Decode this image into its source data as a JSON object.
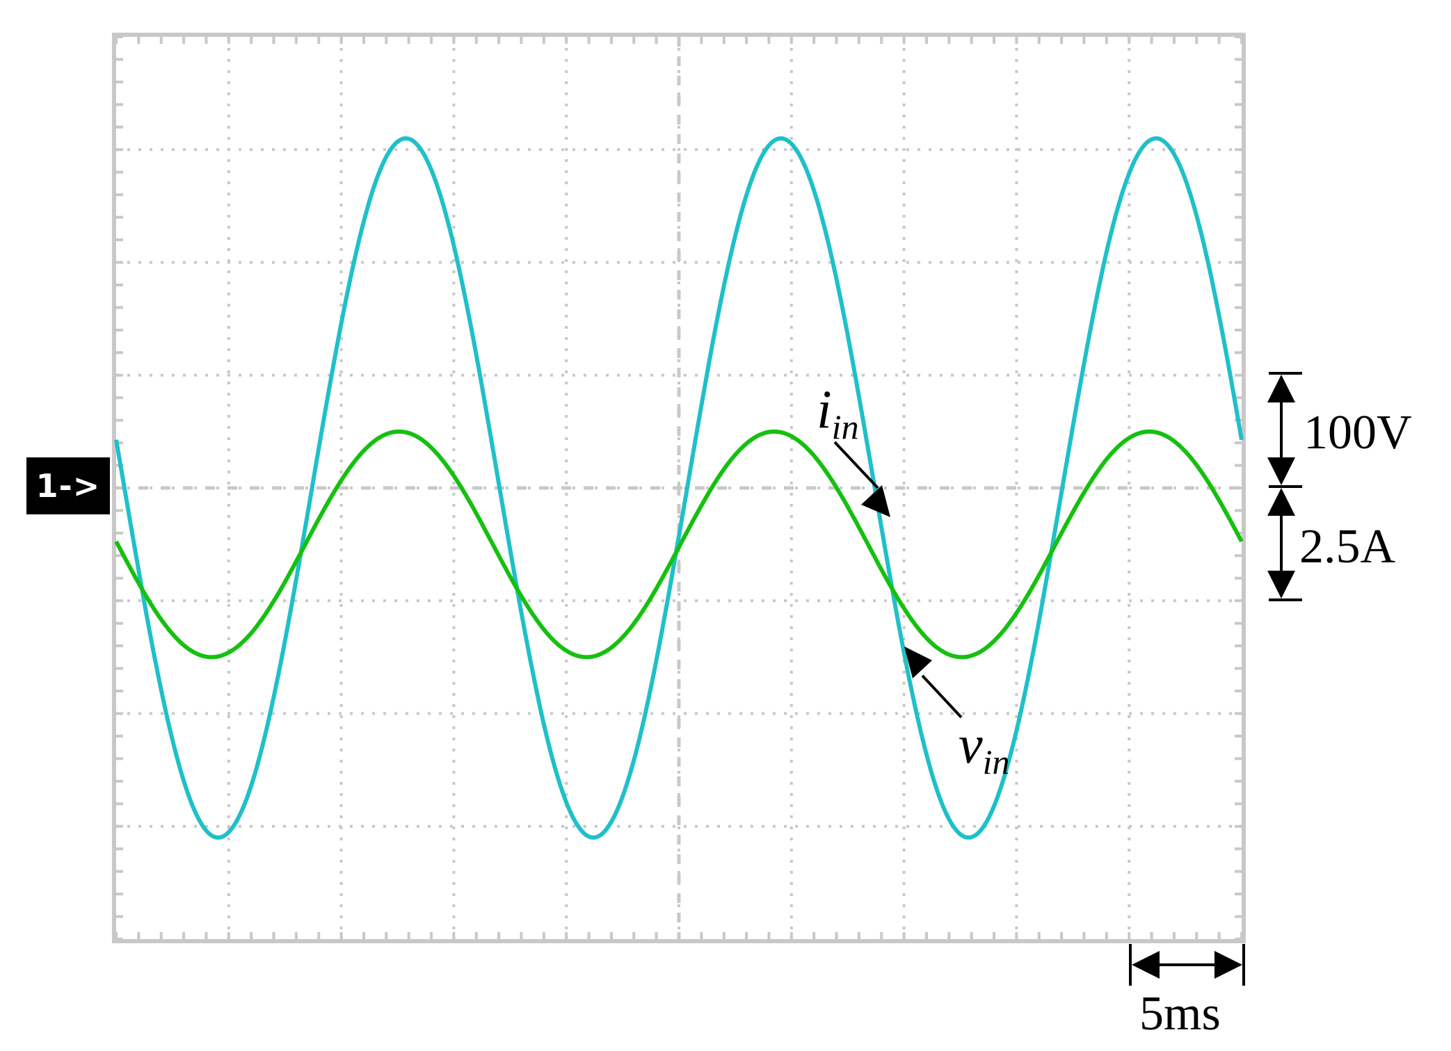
{
  "chart_data": {
    "type": "line",
    "channel_marker": "1->",
    "grid": {
      "divisions_x": 10,
      "divisions_y": 8,
      "style": "dotted"
    },
    "time_per_div": "5ms",
    "scales": [
      {
        "label": "100V",
        "divisions": 1
      },
      {
        "label": "2.5A",
        "divisions": 1
      }
    ],
    "xlim_ms": [
      0,
      50
    ],
    "series": [
      {
        "name": "v_in",
        "label_main": "v",
        "label_sub": "in",
        "color": "#1fc0c8",
        "unit": "V",
        "offset_div": 0,
        "frequency_hz": 60,
        "amplitude": 310,
        "phase_deg": -90,
        "peaks_ms": [
          8.7,
          25.4,
          42.1
        ]
      },
      {
        "name": "i_in",
        "label_main": "i",
        "label_sub": "in",
        "color": "#16c010",
        "unit": "A",
        "offset_div": -0.5,
        "frequency_hz": 60,
        "amplitude": 2.5,
        "phase_deg": -90,
        "peaks_ms": [
          8.4,
          25.1,
          41.8
        ]
      }
    ]
  }
}
